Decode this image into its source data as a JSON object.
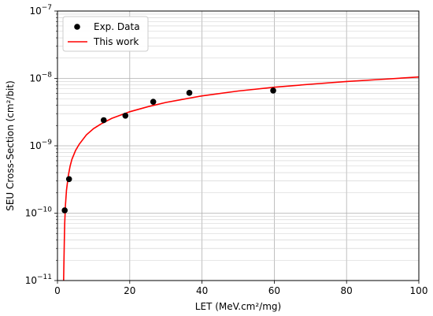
{
  "chart_data": {
    "type": "scatter",
    "title": "",
    "xlabel": "LET (MeV.cm²/mg)",
    "ylabel": "SEU Cross-Section (cm²/bit)",
    "xlim": [
      0,
      100
    ],
    "ylim": [
      1e-11,
      1e-07
    ],
    "yscale": "log",
    "grid": true,
    "legend_position": "top-left",
    "x_ticks": [
      0,
      20,
      40,
      60,
      80,
      100
    ],
    "x_tick_labels": [
      "0",
      "20",
      "40",
      "60",
      "80",
      "100"
    ],
    "y_ticks": [
      1e-11,
      1e-10,
      1e-09,
      1e-08,
      1e-07
    ],
    "y_tick_labels": [
      {
        "base": "10",
        "exp": "−11"
      },
      {
        "base": "10",
        "exp": "−10"
      },
      {
        "base": "10",
        "exp": "−9"
      },
      {
        "base": "10",
        "exp": "−8"
      },
      {
        "base": "10",
        "exp": "−7"
      }
    ],
    "series": [
      {
        "name": "Exp. Data",
        "kind": "scatter",
        "color": "#000000",
        "points": [
          {
            "x": 2.0,
            "y": 1.1e-10
          },
          {
            "x": 3.2,
            "y": 3.2e-10
          },
          {
            "x": 12.8,
            "y": 2.4e-09
          },
          {
            "x": 18.8,
            "y": 2.8e-09
          },
          {
            "x": 26.5,
            "y": 4.5e-09
          },
          {
            "x": 36.5,
            "y": 6.1e-09
          },
          {
            "x": 59.7,
            "y": 6.6e-09
          }
        ]
      },
      {
        "name": "This work",
        "kind": "line",
        "color": "#ff0000",
        "points": [
          {
            "x": 1.7,
            "y": 1e-11
          },
          {
            "x": 1.8,
            "y": 2e-11
          },
          {
            "x": 1.9,
            "y": 4e-11
          },
          {
            "x": 2.0,
            "y": 7e-11
          },
          {
            "x": 2.2,
            "y": 1.3e-10
          },
          {
            "x": 2.5,
            "y": 2.2e-10
          },
          {
            "x": 3.0,
            "y": 3.6e-10
          },
          {
            "x": 3.5,
            "y": 5e-10
          },
          {
            "x": 4.0,
            "y": 6.3e-10
          },
          {
            "x": 5.0,
            "y": 8.5e-10
          },
          {
            "x": 6.0,
            "y": 1.05e-09
          },
          {
            "x": 8.0,
            "y": 1.45e-09
          },
          {
            "x": 10.0,
            "y": 1.8e-09
          },
          {
            "x": 12.0,
            "y": 2.1e-09
          },
          {
            "x": 15.0,
            "y": 2.55e-09
          },
          {
            "x": 20.0,
            "y": 3.2e-09
          },
          {
            "x": 25.0,
            "y": 3.8e-09
          },
          {
            "x": 30.0,
            "y": 4.4e-09
          },
          {
            "x": 40.0,
            "y": 5.5e-09
          },
          {
            "x": 50.0,
            "y": 6.5e-09
          },
          {
            "x": 60.0,
            "y": 7.4e-09
          },
          {
            "x": 70.0,
            "y": 8.2e-09
          },
          {
            "x": 80.0,
            "y": 9e-09
          },
          {
            "x": 90.0,
            "y": 9.7e-09
          },
          {
            "x": 100.0,
            "y": 1.05e-08
          }
        ]
      }
    ]
  }
}
